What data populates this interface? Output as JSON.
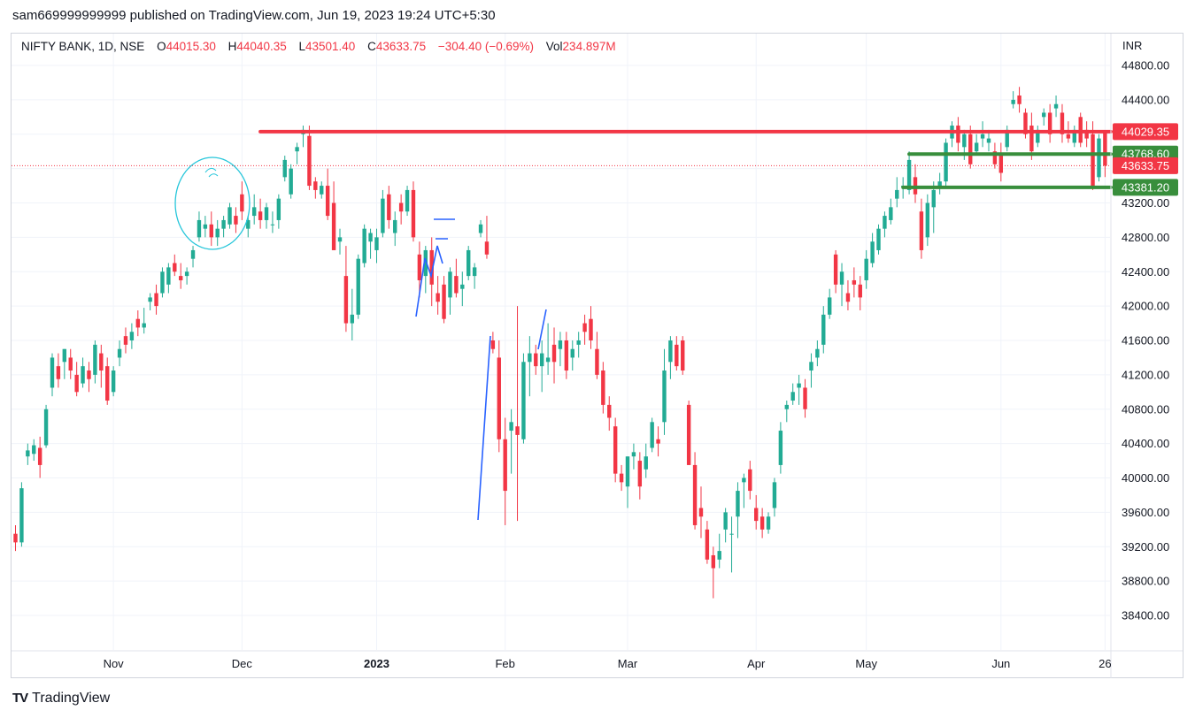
{
  "header": {
    "published": "sam669999999999 published on TradingView.com, Jun 19, 2023 19:24 UTC+5:30"
  },
  "legend": {
    "symbol": "NIFTY BANK, 1D, NSE",
    "o_label": "O",
    "o_value": "44015.30",
    "h_label": "H",
    "h_value": "44040.35",
    "l_label": "L",
    "l_value": "43501.40",
    "c_label": "C",
    "c_value": "43633.75",
    "change": "−304.40 (−0.69%)",
    "vol_label": "Vol",
    "vol_value": "234.897M"
  },
  "currency": "INR",
  "footer": {
    "logo_mark": "TV",
    "brand": "TradingView"
  },
  "colors": {
    "up": "#22ab94",
    "down": "#f23645",
    "hline_red": "#f23645",
    "hline_green": "#388e3c",
    "drawing_blue": "#2962ff",
    "circle_teal": "#26c6da",
    "grid": "#f0f3fa"
  },
  "chart_data": {
    "type": "candlestick",
    "title": "NIFTY BANK, 1D, NSE",
    "ylim": [
      38150,
      45050
    ],
    "yticks": [
      "44800.00",
      "44400.00",
      "44000.00",
      "43600.00",
      "43200.00",
      "42800.00",
      "42400.00",
      "42000.00",
      "41600.00",
      "41200.00",
      "40800.00",
      "40400.00",
      "40000.00",
      "39600.00",
      "39200.00",
      "38800.00",
      "38400.00"
    ],
    "xticks": [
      {
        "label": "Nov",
        "bar": 16,
        "bold": false
      },
      {
        "label": "Dec",
        "bar": 37,
        "bold": false
      },
      {
        "label": "2023",
        "bar": 59,
        "bold": true
      },
      {
        "label": "Feb",
        "bar": 80,
        "bold": false
      },
      {
        "label": "Mar",
        "bar": 100,
        "bold": false
      },
      {
        "label": "Apr",
        "bar": 121,
        "bold": false
      },
      {
        "label": "May",
        "bar": 139,
        "bold": false
      },
      {
        "label": "Jun",
        "bar": 161,
        "bold": false
      },
      {
        "label": "26",
        "bar": 178,
        "bold": false
      }
    ],
    "price_tags": [
      {
        "label": "44029.35",
        "value": 44029.35,
        "color": "#f23645"
      },
      {
        "label": "43768.60",
        "value": 43768.6,
        "color": "#388e3c"
      },
      {
        "label": "43633.75",
        "value": 43633.75,
        "color": "#f23645"
      },
      {
        "label": "43381.20",
        "value": 43381.2,
        "color": "#388e3c"
      }
    ],
    "last_close": 43633.75,
    "horizontal_lines": [
      {
        "value": 44029.35,
        "from_bar": 40,
        "color": "red"
      },
      {
        "value": 43768.6,
        "from_bar": 146,
        "color": "green"
      },
      {
        "value": 43381.2,
        "from_bar": 145,
        "color": "green"
      }
    ],
    "candles": [
      {
        "o": 39350,
        "h": 39450,
        "l": 39150,
        "c": 39250
      },
      {
        "o": 39250,
        "h": 39950,
        "l": 39200,
        "c": 39880
      },
      {
        "o": 40250,
        "h": 40400,
        "l": 40150,
        "c": 40320
      },
      {
        "o": 40280,
        "h": 40450,
        "l": 40200,
        "c": 40380
      },
      {
        "o": 40350,
        "h": 40480,
        "l": 40000,
        "c": 40150
      },
      {
        "o": 40380,
        "h": 40850,
        "l": 40350,
        "c": 40800
      },
      {
        "o": 41050,
        "h": 41450,
        "l": 40950,
        "c": 41400
      },
      {
        "o": 41300,
        "h": 41450,
        "l": 41050,
        "c": 41150
      },
      {
        "o": 41350,
        "h": 41500,
        "l": 41150,
        "c": 41500
      },
      {
        "o": 41400,
        "h": 41500,
        "l": 41150,
        "c": 41250
      },
      {
        "o": 41200,
        "h": 41350,
        "l": 40950,
        "c": 41000
      },
      {
        "o": 41100,
        "h": 41400,
        "l": 41050,
        "c": 41300
      },
      {
        "o": 41250,
        "h": 41350,
        "l": 41000,
        "c": 41150
      },
      {
        "o": 41200,
        "h": 41600,
        "l": 41100,
        "c": 41550
      },
      {
        "o": 41450,
        "h": 41550,
        "l": 41050,
        "c": 41250
      },
      {
        "o": 41300,
        "h": 41400,
        "l": 40850,
        "c": 40900
      },
      {
        "o": 41000,
        "h": 41300,
        "l": 40950,
        "c": 41250
      },
      {
        "o": 41400,
        "h": 41600,
        "l": 41300,
        "c": 41500
      },
      {
        "o": 41650,
        "h": 41750,
        "l": 41450,
        "c": 41550
      },
      {
        "o": 41600,
        "h": 41800,
        "l": 41500,
        "c": 41700
      },
      {
        "o": 41850,
        "h": 41950,
        "l": 41650,
        "c": 41750
      },
      {
        "o": 41750,
        "h": 41980,
        "l": 41680,
        "c": 41800
      },
      {
        "o": 42050,
        "h": 42150,
        "l": 41950,
        "c": 42100
      },
      {
        "o": 42150,
        "h": 42250,
        "l": 41900,
        "c": 42000
      },
      {
        "o": 42150,
        "h": 42450,
        "l": 42100,
        "c": 42400
      },
      {
        "o": 42250,
        "h": 42500,
        "l": 42150,
        "c": 42450
      },
      {
        "o": 42500,
        "h": 42600,
        "l": 42350,
        "c": 42400
      },
      {
        "o": 42350,
        "h": 42500,
        "l": 42200,
        "c": 42300
      },
      {
        "o": 42350,
        "h": 42450,
        "l": 42250,
        "c": 42400
      },
      {
        "o": 42550,
        "h": 42700,
        "l": 42450,
        "c": 42650
      },
      {
        "o": 42800,
        "h": 43100,
        "l": 42750,
        "c": 43000
      },
      {
        "o": 42900,
        "h": 43050,
        "l": 42800,
        "c": 42950
      },
      {
        "o": 42950,
        "h": 43100,
        "l": 42700,
        "c": 42800
      },
      {
        "o": 42800,
        "h": 43000,
        "l": 42700,
        "c": 42900
      },
      {
        "o": 42900,
        "h": 43050,
        "l": 42800,
        "c": 43000
      },
      {
        "o": 42950,
        "h": 43200,
        "l": 42900,
        "c": 43150
      },
      {
        "o": 43050,
        "h": 43150,
        "l": 42850,
        "c": 42950
      },
      {
        "o": 43300,
        "h": 43450,
        "l": 43000,
        "c": 43100
      },
      {
        "o": 42900,
        "h": 43050,
        "l": 42800,
        "c": 43000
      },
      {
        "o": 43050,
        "h": 43300,
        "l": 42950,
        "c": 43150
      },
      {
        "o": 43100,
        "h": 43250,
        "l": 42900,
        "c": 43000
      },
      {
        "o": 43000,
        "h": 43200,
        "l": 42900,
        "c": 43150
      },
      {
        "o": 42950,
        "h": 43100,
        "l": 42850,
        "c": 42950
      },
      {
        "o": 43000,
        "h": 43300,
        "l": 42900,
        "c": 43250
      },
      {
        "o": 43500,
        "h": 43750,
        "l": 43450,
        "c": 43700
      },
      {
        "o": 43300,
        "h": 43650,
        "l": 43250,
        "c": 43600
      },
      {
        "o": 43800,
        "h": 43900,
        "l": 43650,
        "c": 43850
      },
      {
        "o": 44000,
        "h": 44100,
        "l": 43850,
        "c": 44050
      },
      {
        "o": 43980,
        "h": 44100,
        "l": 43350,
        "c": 43400
      },
      {
        "o": 43450,
        "h": 43500,
        "l": 43250,
        "c": 43350
      },
      {
        "o": 43300,
        "h": 43450,
        "l": 43250,
        "c": 43400
      },
      {
        "o": 43400,
        "h": 43600,
        "l": 43000,
        "c": 43050
      },
      {
        "o": 43200,
        "h": 43450,
        "l": 42650,
        "c": 42650
      },
      {
        "o": 42750,
        "h": 42900,
        "l": 42600,
        "c": 42800
      },
      {
        "o": 42350,
        "h": 42700,
        "l": 41700,
        "c": 41800
      },
      {
        "o": 41800,
        "h": 42200,
        "l": 41600,
        "c": 41900
      },
      {
        "o": 41900,
        "h": 42600,
        "l": 41850,
        "c": 42550
      },
      {
        "o": 42500,
        "h": 42950,
        "l": 42450,
        "c": 42900
      },
      {
        "o": 42750,
        "h": 42900,
        "l": 42550,
        "c": 42850
      },
      {
        "o": 42650,
        "h": 42900,
        "l": 42500,
        "c": 42800
      },
      {
        "o": 42850,
        "h": 43350,
        "l": 42800,
        "c": 43250
      },
      {
        "o": 43300,
        "h": 43400,
        "l": 42900,
        "c": 43000
      },
      {
        "o": 42850,
        "h": 43100,
        "l": 42700,
        "c": 43000
      },
      {
        "o": 43200,
        "h": 43300,
        "l": 42950,
        "c": 43100
      },
      {
        "o": 43100,
        "h": 43400,
        "l": 43050,
        "c": 43350
      },
      {
        "o": 43350,
        "h": 43450,
        "l": 42750,
        "c": 42800
      },
      {
        "o": 42600,
        "h": 42750,
        "l": 42100,
        "c": 42300
      },
      {
        "o": 42350,
        "h": 42700,
        "l": 42150,
        "c": 42650
      },
      {
        "o": 42650,
        "h": 42800,
        "l": 42000,
        "c": 42250
      },
      {
        "o": 42150,
        "h": 42350,
        "l": 41900,
        "c": 42050
      },
      {
        "o": 42250,
        "h": 42350,
        "l": 41800,
        "c": 41850
      },
      {
        "o": 42100,
        "h": 42450,
        "l": 41900,
        "c": 42400
      },
      {
        "o": 42350,
        "h": 42550,
        "l": 42100,
        "c": 42150
      },
      {
        "o": 42200,
        "h": 42400,
        "l": 42000,
        "c": 42250
      },
      {
        "o": 42350,
        "h": 42700,
        "l": 42300,
        "c": 42650
      },
      {
        "o": 42350,
        "h": 42500,
        "l": 42200,
        "c": 42450
      },
      {
        "o": 42850,
        "h": 43000,
        "l": 42800,
        "c": 42950
      },
      {
        "o": 42750,
        "h": 43050,
        "l": 42550,
        "c": 42600
      },
      {
        "o": 41600,
        "h": 41700,
        "l": 41450,
        "c": 41500
      },
      {
        "o": 41400,
        "h": 41600,
        "l": 40300,
        "c": 40450
      },
      {
        "o": 40450,
        "h": 40700,
        "l": 39450,
        "c": 39850
      },
      {
        "o": 40550,
        "h": 40800,
        "l": 40050,
        "c": 40650
      },
      {
        "o": 40600,
        "h": 42000,
        "l": 39500,
        "c": 40500
      },
      {
        "o": 40450,
        "h": 41450,
        "l": 40400,
        "c": 41350
      },
      {
        "o": 41350,
        "h": 41650,
        "l": 40950,
        "c": 41450
      },
      {
        "o": 41450,
        "h": 41550,
        "l": 41200,
        "c": 41300
      },
      {
        "o": 41300,
        "h": 41600,
        "l": 41000,
        "c": 41450
      },
      {
        "o": 41350,
        "h": 41800,
        "l": 41200,
        "c": 41400
      },
      {
        "o": 41550,
        "h": 41750,
        "l": 41100,
        "c": 41350
      },
      {
        "o": 41500,
        "h": 41700,
        "l": 41300,
        "c": 41600
      },
      {
        "o": 41600,
        "h": 41700,
        "l": 41150,
        "c": 41250
      },
      {
        "o": 41400,
        "h": 41600,
        "l": 41250,
        "c": 41500
      },
      {
        "o": 41550,
        "h": 41700,
        "l": 41400,
        "c": 41600
      },
      {
        "o": 41800,
        "h": 41900,
        "l": 41550,
        "c": 41700
      },
      {
        "o": 41850,
        "h": 42000,
        "l": 41500,
        "c": 41600
      },
      {
        "o": 41500,
        "h": 41700,
        "l": 41150,
        "c": 41200
      },
      {
        "o": 41250,
        "h": 41350,
        "l": 40750,
        "c": 40850
      },
      {
        "o": 40850,
        "h": 40950,
        "l": 40550,
        "c": 40700
      },
      {
        "o": 40600,
        "h": 40700,
        "l": 39950,
        "c": 40050
      },
      {
        "o": 40050,
        "h": 40150,
        "l": 39850,
        "c": 39950
      },
      {
        "o": 39900,
        "h": 40250,
        "l": 39650,
        "c": 40250
      },
      {
        "o": 40250,
        "h": 40400,
        "l": 40100,
        "c": 40300
      },
      {
        "o": 40200,
        "h": 40300,
        "l": 39750,
        "c": 39900
      },
      {
        "o": 40100,
        "h": 40400,
        "l": 40000,
        "c": 40250
      },
      {
        "o": 40350,
        "h": 40700,
        "l": 40300,
        "c": 40650
      },
      {
        "o": 40450,
        "h": 40600,
        "l": 40250,
        "c": 40400
      },
      {
        "o": 40650,
        "h": 41500,
        "l": 40500,
        "c": 41250
      },
      {
        "o": 41350,
        "h": 41650,
        "l": 41150,
        "c": 41600
      },
      {
        "o": 41550,
        "h": 41650,
        "l": 41250,
        "c": 41300
      },
      {
        "o": 41600,
        "h": 41650,
        "l": 41200,
        "c": 41250
      },
      {
        "o": 40850,
        "h": 40900,
        "l": 40150,
        "c": 40150
      },
      {
        "o": 40150,
        "h": 40300,
        "l": 39400,
        "c": 39450
      },
      {
        "o": 39650,
        "h": 39900,
        "l": 39300,
        "c": 39550
      },
      {
        "o": 39400,
        "h": 39500,
        "l": 39000,
        "c": 39050
      },
      {
        "o": 39100,
        "h": 39200,
        "l": 38600,
        "c": 38950
      },
      {
        "o": 39050,
        "h": 39350,
        "l": 38950,
        "c": 39150
      },
      {
        "o": 39400,
        "h": 39650,
        "l": 39250,
        "c": 39600
      },
      {
        "o": 39350,
        "h": 39550,
        "l": 38900,
        "c": 39350
      },
      {
        "o": 39550,
        "h": 39950,
        "l": 39300,
        "c": 39850
      },
      {
        "o": 39950,
        "h": 40050,
        "l": 39650,
        "c": 40000
      },
      {
        "o": 40100,
        "h": 40200,
        "l": 39750,
        "c": 39850
      },
      {
        "o": 39650,
        "h": 39800,
        "l": 39400,
        "c": 39500
      },
      {
        "o": 39550,
        "h": 39650,
        "l": 39300,
        "c": 39400
      },
      {
        "o": 39400,
        "h": 39600,
        "l": 39350,
        "c": 39550
      },
      {
        "o": 39650,
        "h": 40000,
        "l": 39550,
        "c": 39950
      },
      {
        "o": 40150,
        "h": 40650,
        "l": 40050,
        "c": 40550
      },
      {
        "o": 40800,
        "h": 40900,
        "l": 40650,
        "c": 40850
      },
      {
        "o": 40900,
        "h": 41100,
        "l": 40850,
        "c": 41000
      },
      {
        "o": 41050,
        "h": 41200,
        "l": 40850,
        "c": 41100
      },
      {
        "o": 41050,
        "h": 41150,
        "l": 40700,
        "c": 40800
      },
      {
        "o": 41250,
        "h": 41450,
        "l": 41050,
        "c": 41350
      },
      {
        "o": 41400,
        "h": 41600,
        "l": 41300,
        "c": 41500
      },
      {
        "o": 41550,
        "h": 42000,
        "l": 41450,
        "c": 41900
      },
      {
        "o": 41900,
        "h": 42200,
        "l": 41850,
        "c": 42100
      },
      {
        "o": 42600,
        "h": 42650,
        "l": 42150,
        "c": 42250
      },
      {
        "o": 42250,
        "h": 42500,
        "l": 42000,
        "c": 42400
      },
      {
        "o": 42150,
        "h": 42300,
        "l": 41950,
        "c": 42050
      },
      {
        "o": 42300,
        "h": 42450,
        "l": 42100,
        "c": 42250
      },
      {
        "o": 42250,
        "h": 42350,
        "l": 41950,
        "c": 42100
      },
      {
        "o": 42300,
        "h": 42650,
        "l": 42200,
        "c": 42550
      },
      {
        "o": 42500,
        "h": 42850,
        "l": 42450,
        "c": 42750
      },
      {
        "o": 42650,
        "h": 42950,
        "l": 42600,
        "c": 42900
      },
      {
        "o": 42900,
        "h": 43100,
        "l": 42800,
        "c": 43050
      },
      {
        "o": 43000,
        "h": 43250,
        "l": 42950,
        "c": 43150
      },
      {
        "o": 43250,
        "h": 43500,
        "l": 43150,
        "c": 43350
      },
      {
        "o": 43400,
        "h": 43500,
        "l": 43250,
        "c": 43400
      },
      {
        "o": 43350,
        "h": 43800,
        "l": 43300,
        "c": 43700
      },
      {
        "o": 43500,
        "h": 43650,
        "l": 43200,
        "c": 43300
      },
      {
        "o": 43100,
        "h": 43250,
        "l": 42550,
        "c": 42650
      },
      {
        "o": 42800,
        "h": 43300,
        "l": 42700,
        "c": 43200
      },
      {
        "o": 43150,
        "h": 43450,
        "l": 42850,
        "c": 43350
      },
      {
        "o": 43400,
        "h": 43550,
        "l": 43300,
        "c": 43450
      },
      {
        "o": 43450,
        "h": 43950,
        "l": 43400,
        "c": 43900
      },
      {
        "o": 43950,
        "h": 44150,
        "l": 43850,
        "c": 44100
      },
      {
        "o": 44100,
        "h": 44200,
        "l": 43800,
        "c": 43900
      },
      {
        "o": 43850,
        "h": 44050,
        "l": 43700,
        "c": 44000
      },
      {
        "o": 44000,
        "h": 44100,
        "l": 43600,
        "c": 43650
      },
      {
        "o": 43800,
        "h": 44000,
        "l": 43750,
        "c": 43900
      },
      {
        "o": 43950,
        "h": 44150,
        "l": 43850,
        "c": 44000
      },
      {
        "o": 43900,
        "h": 44050,
        "l": 43800,
        "c": 43950
      },
      {
        "o": 43800,
        "h": 43900,
        "l": 43600,
        "c": 43650
      },
      {
        "o": 43750,
        "h": 43900,
        "l": 43450,
        "c": 43550
      },
      {
        "o": 43850,
        "h": 44100,
        "l": 43800,
        "c": 44050
      },
      {
        "o": 44350,
        "h": 44500,
        "l": 44300,
        "c": 44400
      },
      {
        "o": 44450,
        "h": 44550,
        "l": 44250,
        "c": 44350
      },
      {
        "o": 44250,
        "h": 44300,
        "l": 43950,
        "c": 44000
      },
      {
        "o": 44100,
        "h": 44250,
        "l": 43700,
        "c": 43800
      },
      {
        "o": 43900,
        "h": 44100,
        "l": 43850,
        "c": 44050
      },
      {
        "o": 44200,
        "h": 44300,
        "l": 44100,
        "c": 44250
      },
      {
        "o": 44250,
        "h": 44350,
        "l": 43900,
        "c": 44000
      },
      {
        "o": 44300,
        "h": 44450,
        "l": 44200,
        "c": 44350
      },
      {
        "o": 44250,
        "h": 44350,
        "l": 43900,
        "c": 44000
      },
      {
        "o": 44000,
        "h": 44150,
        "l": 43900,
        "c": 43950
      },
      {
        "o": 43900,
        "h": 44100,
        "l": 43850,
        "c": 44050
      },
      {
        "o": 44200,
        "h": 44250,
        "l": 43850,
        "c": 43900
      },
      {
        "o": 44050,
        "h": 44150,
        "l": 43850,
        "c": 43950
      },
      {
        "o": 44000,
        "h": 44150,
        "l": 43350,
        "c": 43400
      },
      {
        "o": 43500,
        "h": 44000,
        "l": 43450,
        "c": 43950
      },
      {
        "o": 44015,
        "h": 44040,
        "l": 43501,
        "c": 43634
      }
    ]
  }
}
